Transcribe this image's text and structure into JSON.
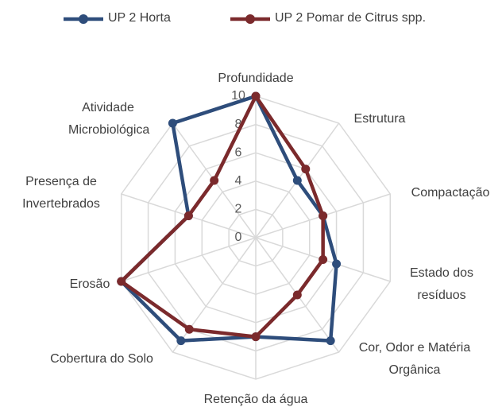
{
  "chart_data": {
    "type": "radar",
    "categories": [
      "Profundidade",
      "Estrutura",
      "Compactação",
      "Estado dos resíduos",
      "Cor, Odor e Matéria Orgânica",
      "Retenção da água",
      "Cobertura do Solo",
      "Erosão",
      "Presença de Invertebrados",
      "Atividade Microbiológica"
    ],
    "series": [
      {
        "name": "UP 2 Horta",
        "color": "#2e4d7b",
        "values": [
          10,
          5,
          5,
          6,
          9,
          7,
          9,
          10,
          5,
          10
        ]
      },
      {
        "name": "UP 2 Pomar de Citrus spp.",
        "color": "#7b2a2c",
        "values": [
          10,
          6,
          5,
          5,
          5,
          7,
          8,
          10,
          5,
          5
        ]
      }
    ],
    "rlim": [
      0,
      10
    ],
    "rticks": [
      0,
      2,
      4,
      6,
      8,
      10
    ],
    "grid": true,
    "legend": "top"
  }
}
